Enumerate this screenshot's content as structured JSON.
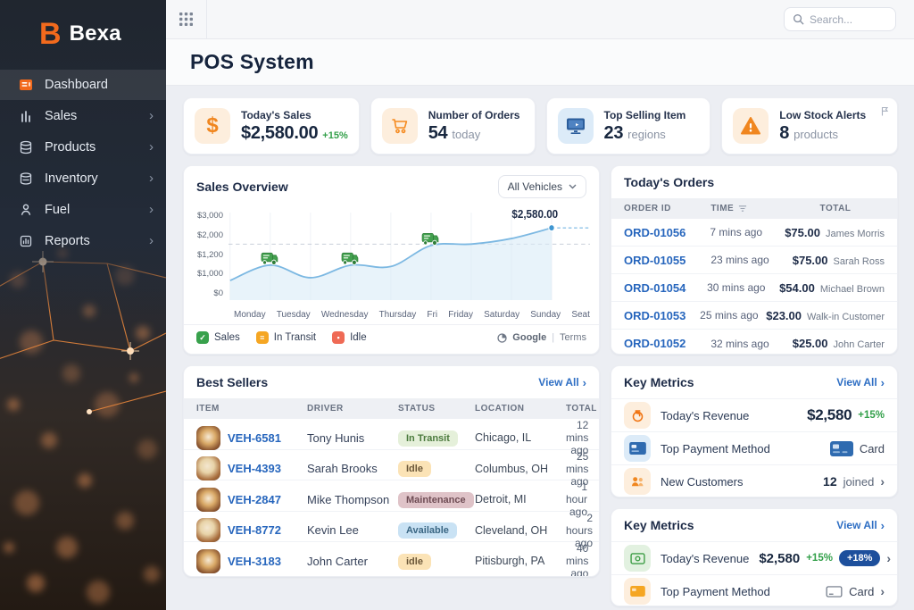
{
  "brand": {
    "name": "Bexa",
    "accent": "#f26a1d"
  },
  "palette": {
    "accent": "#f26a1d",
    "link": "#2f6fc4",
    "positive": "#33a04a",
    "chart_line": "#7cb8e2",
    "badge_blue": "#1d4f9c"
  },
  "topbar": {
    "search_placeholder": "Search..."
  },
  "page": {
    "title": "POS System"
  },
  "sidebar": {
    "items": [
      {
        "label": "Dashboard",
        "chevron": ""
      },
      {
        "label": "Sales",
        "chevron": "›"
      },
      {
        "label": "Products",
        "chevron": "›"
      },
      {
        "label": "Inventory",
        "chevron": "›"
      },
      {
        "label": "Fuel",
        "chevron": "›"
      },
      {
        "label": "Reports",
        "chevron": "›"
      }
    ]
  },
  "stats": [
    {
      "label": "Today's Sales",
      "value": "$2,580.00",
      "delta": "+15%"
    },
    {
      "label": "Number of Orders",
      "value": "54",
      "unit": "today"
    },
    {
      "label": "Top Selling Item",
      "value": "23",
      "unit": "regions"
    },
    {
      "label": "Low Stock Alerts",
      "value": "8",
      "unit": "products"
    }
  ],
  "sales_overview": {
    "title": "Sales Overview",
    "filter_label": "All Vehicles",
    "legend": [
      {
        "label": "Sales",
        "color": "#38a14c",
        "glyph": "✓"
      },
      {
        "label": "In Transit",
        "color": "#f5a623",
        "glyph": "≡"
      },
      {
        "label": "Idle",
        "color": "#ef6a55",
        "glyph": "▪"
      }
    ],
    "attribution": {
      "provider": "Google",
      "terms": "Terms"
    }
  },
  "chart_data": {
    "type": "line",
    "title": "Sales Overview",
    "categories": [
      "Monday",
      "Tuesday",
      "Wednesday",
      "Thursday",
      "Fri",
      "Friday",
      "Saturday",
      "Sunday",
      "Seat"
    ],
    "series": [
      {
        "name": "Sales",
        "values": [
          700,
          1250,
          800,
          1250,
          1200,
          1950,
          2000,
          2200,
          2580
        ]
      }
    ],
    "ylim": [
      0,
      3000
    ],
    "y_tick_labels": [
      "$3,000",
      "$2,000",
      "$1,200",
      "$1,000",
      "$0"
    ],
    "dashed_line_value": 2000,
    "annotation": {
      "text": "$2,580.00",
      "point_index": 8
    },
    "truck_marker_indices": [
      1,
      3,
      5
    ],
    "grid": true,
    "legend_position": "bottom"
  },
  "orders": {
    "title": "Today's Orders",
    "columns": {
      "id": "ORDER ID",
      "time": "TIME",
      "total": "TOTAL"
    },
    "rows": [
      {
        "id": "ORD-01056",
        "time": "7 mins ago",
        "total": "$75.00",
        "customer": "James Morris"
      },
      {
        "id": "ORD-01055",
        "time": "23 mins ago",
        "total": "$75.00",
        "customer": "Sarah Ross"
      },
      {
        "id": "ORD-01054",
        "time": "30 mins ago",
        "total": "$54.00",
        "customer": "Michael Brown"
      },
      {
        "id": "ORD-01053",
        "time": "25 mins ago",
        "total": "$23.00",
        "customer": "Walk-in Customer"
      },
      {
        "id": "ORD-01052",
        "time": "32 mins ago",
        "total": "$25.00",
        "customer": "John Carter"
      }
    ]
  },
  "best_sellers": {
    "title": "Best Sellers",
    "view_all": "View All",
    "view_all_chevron": "›",
    "columns": {
      "item": "ITEM",
      "driver": "DRIVER",
      "status": "STATUS",
      "location": "LOCATION",
      "total": "TOTAL"
    },
    "rows": [
      {
        "id": "VEH-6581",
        "driver": "Tony Hunis",
        "status": "In Transit",
        "status_type": "in-transit",
        "location": "Chicago, IL",
        "total": "12 mins ago"
      },
      {
        "id": "VEH-4393",
        "driver": "Sarah Brooks",
        "status": "Idle",
        "status_type": "idle",
        "location": "Columbus, OH",
        "total": "25 mins ago"
      },
      {
        "id": "VEH-2847",
        "driver": "Mike Thompson",
        "status": "Maintenance",
        "status_type": "maintenance",
        "location": "Detroit, MI",
        "total": "1 hour ago"
      },
      {
        "id": "VEH-8772",
        "driver": "Kevin Lee",
        "status": "Available",
        "status_type": "available",
        "location": "Cleveland, OH",
        "total": "2 hours ago"
      },
      {
        "id": "VEH-3183",
        "driver": "John Carter",
        "status": "idle",
        "status_type": "idle",
        "location": "Pitisburgh, PA",
        "total": "40 mins ago"
      }
    ]
  },
  "key_metrics_a": {
    "title": "Key Metrics",
    "view_all": "View All",
    "view_all_chevron": "›",
    "rows": [
      {
        "label": "Today's Revenue",
        "value": "$2,580",
        "delta": "+15%"
      },
      {
        "label": "Top Payment Method",
        "value": "Card"
      },
      {
        "label": "New Customers",
        "value": "12",
        "suffix": "joined",
        "chevron": "›"
      }
    ]
  },
  "key_metrics_b": {
    "title": "Key Metrics",
    "view_all": "View All",
    "view_all_chevron": "›",
    "rows": [
      {
        "label": "Today's Revenue",
        "value": "$2,580",
        "delta": "+15%",
        "badge": "+18%",
        "chevron": "›"
      },
      {
        "label": "Top Payment Method",
        "value": "Card",
        "chevron": "›"
      }
    ]
  }
}
